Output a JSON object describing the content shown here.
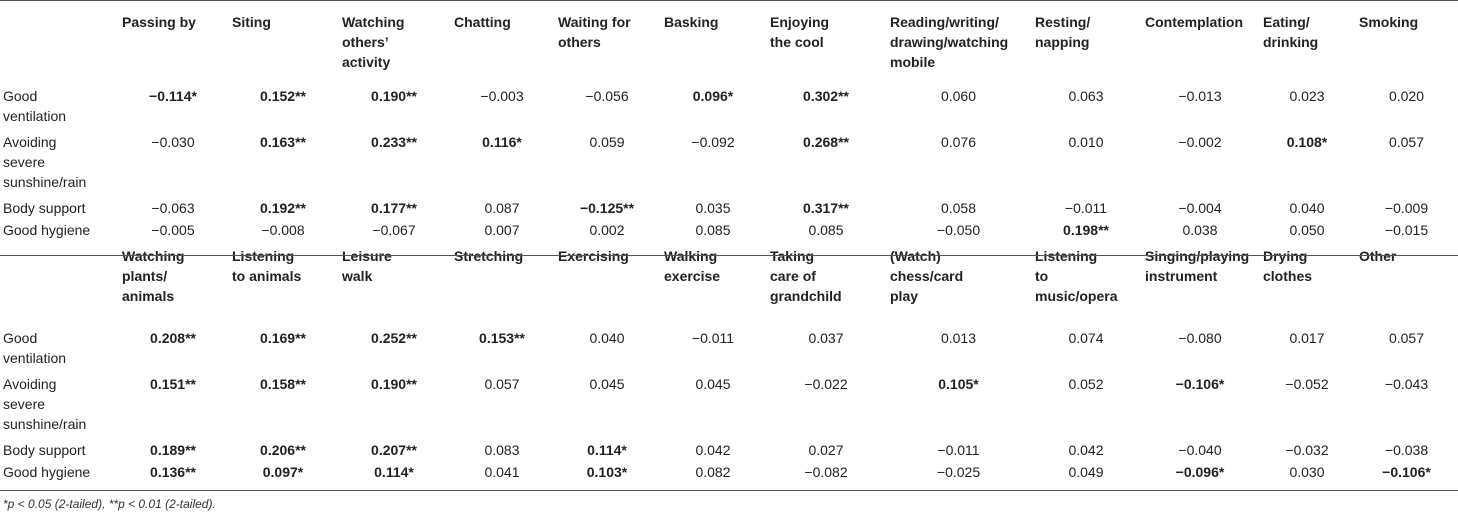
{
  "table": {
    "block1": {
      "headers": [
        "Passing by",
        "Siting",
        "Watching others’ activity",
        "Chatting",
        "Waiting for others",
        "Basking",
        "Enjoying the cool",
        "Reading/writing/ drawing/watching mobile",
        "Resting/ napping",
        "Contemplation",
        "Eating/ drinking",
        "Smoking"
      ],
      "header_lines": [
        [
          "Passing by"
        ],
        [
          "Siting"
        ],
        [
          "Watching",
          "others’",
          "activity"
        ],
        [
          "Chatting"
        ],
        [
          "Waiting for",
          "others"
        ],
        [
          "Basking"
        ],
        [
          "Enjoying",
          "the cool"
        ],
        [
          "Reading/writing/",
          "drawing/watching",
          "mobile"
        ],
        [
          "Resting/",
          "napping"
        ],
        [
          "Contemplation"
        ],
        [
          "Eating/",
          "drinking"
        ],
        [
          "Smoking"
        ]
      ],
      "rows": [
        {
          "label": "Good ventilation",
          "label_lines": [
            "Good",
            "ventilation"
          ],
          "cells": [
            {
              "v": "−0.114*",
              "bold": true
            },
            {
              "v": "0.152**",
              "bold": true
            },
            {
              "v": "0.190**",
              "bold": true
            },
            {
              "v": "−0.003",
              "bold": false
            },
            {
              "v": "−0.056",
              "bold": false
            },
            {
              "v": "0.096*",
              "bold": true
            },
            {
              "v": "0.302**",
              "bold": true
            },
            {
              "v": "0.060",
              "bold": false
            },
            {
              "v": "0.063",
              "bold": false
            },
            {
              "v": "−0.013",
              "bold": false
            },
            {
              "v": "0.023",
              "bold": false
            },
            {
              "v": "0.020",
              "bold": false
            }
          ]
        },
        {
          "label": "Avoiding severe sunshine/rain",
          "label_lines": [
            "Avoiding",
            "severe",
            "sunshine/rain"
          ],
          "cells": [
            {
              "v": "−0.030",
              "bold": false
            },
            {
              "v": "0.163**",
              "bold": true
            },
            {
              "v": "0.233**",
              "bold": true
            },
            {
              "v": "0.116*",
              "bold": true
            },
            {
              "v": "0.059",
              "bold": false
            },
            {
              "v": "−0.092",
              "bold": false
            },
            {
              "v": "0.268**",
              "bold": true
            },
            {
              "v": "0.076",
              "bold": false
            },
            {
              "v": "0.010",
              "bold": false
            },
            {
              "v": "−0.002",
              "bold": false
            },
            {
              "v": "0.108*",
              "bold": true
            },
            {
              "v": "0.057",
              "bold": false
            }
          ]
        },
        {
          "label": "Body support",
          "label_lines": [
            "Body support"
          ],
          "cells": [
            {
              "v": "−0.063",
              "bold": false
            },
            {
              "v": "0.192**",
              "bold": true
            },
            {
              "v": "0.177**",
              "bold": true
            },
            {
              "v": "0.087",
              "bold": false
            },
            {
              "v": "−0.125**",
              "bold": true
            },
            {
              "v": "0.035",
              "bold": false
            },
            {
              "v": "0.317**",
              "bold": true
            },
            {
              "v": "0.058",
              "bold": false
            },
            {
              "v": "−0.011",
              "bold": false
            },
            {
              "v": "−0.004",
              "bold": false
            },
            {
              "v": "0.040",
              "bold": false
            },
            {
              "v": "−0.009",
              "bold": false
            }
          ]
        },
        {
          "label": "Good hygiene",
          "label_lines": [
            "Good hygiene"
          ],
          "cells": [
            {
              "v": "−0.005",
              "bold": false
            },
            {
              "v": "−0.008",
              "bold": false
            },
            {
              "v": "−0.067",
              "bold": false
            },
            {
              "v": "0.007",
              "bold": false
            },
            {
              "v": "0.002",
              "bold": false
            },
            {
              "v": "0.085",
              "bold": false
            },
            {
              "v": "0.085",
              "bold": false
            },
            {
              "v": "−0.050",
              "bold": false
            },
            {
              "v": "0.198**",
              "bold": true
            },
            {
              "v": "0.038",
              "bold": false
            },
            {
              "v": "0.050",
              "bold": false
            },
            {
              "v": "−0.015",
              "bold": false
            }
          ]
        }
      ]
    },
    "block2": {
      "headers": [
        "Watching plants/ animals",
        "Listening to animals",
        "Leisure walk",
        "Stretching",
        "Exercising",
        "Walking exercise",
        "Taking care of grandchild",
        "(Watch) chess/card play",
        "Listening to music/opera",
        "Singing/playing instrument",
        "Drying clothes",
        "Other"
      ],
      "header_lines": [
        [
          "Watching",
          "plants/",
          "animals"
        ],
        [
          "Listening",
          "to animals"
        ],
        [
          "Leisure",
          "walk"
        ],
        [
          "Stretching"
        ],
        [
          "Exercising"
        ],
        [
          "Walking",
          "exercise"
        ],
        [
          "Taking",
          "care of",
          "grandchild"
        ],
        [
          "(Watch)",
          "chess/card",
          "play"
        ],
        [
          "Listening",
          "to",
          "music/opera"
        ],
        [
          "Singing/playing",
          "instrument"
        ],
        [
          "Drying",
          "clothes"
        ],
        [
          "Other"
        ]
      ],
      "rows": [
        {
          "label": "Good ventilation",
          "label_lines": [
            "Good",
            "ventilation"
          ],
          "cells": [
            {
              "v": "0.208**",
              "bold": true
            },
            {
              "v": "0.169**",
              "bold": true
            },
            {
              "v": "0.252**",
              "bold": true
            },
            {
              "v": "0.153**",
              "bold": true
            },
            {
              "v": "0.040",
              "bold": false
            },
            {
              "v": "−0.011",
              "bold": false
            },
            {
              "v": "0.037",
              "bold": false
            },
            {
              "v": "0.013",
              "bold": false
            },
            {
              "v": "0.074",
              "bold": false
            },
            {
              "v": "−0.080",
              "bold": false
            },
            {
              "v": "0.017",
              "bold": false
            },
            {
              "v": "0.057",
              "bold": false
            }
          ]
        },
        {
          "label": "Avoiding severe sunshine/rain",
          "label_lines": [
            "Avoiding",
            "severe",
            "sunshine/rain"
          ],
          "cells": [
            {
              "v": "0.151**",
              "bold": true
            },
            {
              "v": "0.158**",
              "bold": true
            },
            {
              "v": "0.190**",
              "bold": true
            },
            {
              "v": "0.057",
              "bold": false
            },
            {
              "v": "0.045",
              "bold": false
            },
            {
              "v": "0.045",
              "bold": false
            },
            {
              "v": "−0.022",
              "bold": false
            },
            {
              "v": "0.105*",
              "bold": true
            },
            {
              "v": "0.052",
              "bold": false
            },
            {
              "v": "−0.106*",
              "bold": true
            },
            {
              "v": "−0.052",
              "bold": false
            },
            {
              "v": "−0.043",
              "bold": false
            }
          ]
        },
        {
          "label": "Body support",
          "label_lines": [
            "Body support"
          ],
          "cells": [
            {
              "v": "0.189**",
              "bold": true
            },
            {
              "v": "0.206**",
              "bold": true
            },
            {
              "v": "0.207**",
              "bold": true
            },
            {
              "v": "0.083",
              "bold": false
            },
            {
              "v": "0.114*",
              "bold": true
            },
            {
              "v": "0.042",
              "bold": false
            },
            {
              "v": "0.027",
              "bold": false
            },
            {
              "v": "−0.011",
              "bold": false
            },
            {
              "v": "0.042",
              "bold": false
            },
            {
              "v": "−0.040",
              "bold": false
            },
            {
              "v": "−0.032",
              "bold": false
            },
            {
              "v": "−0.038",
              "bold": false
            }
          ]
        },
        {
          "label": "Good hygiene",
          "label_lines": [
            "Good hygiene"
          ],
          "cells": [
            {
              "v": "0.136**",
              "bold": true
            },
            {
              "v": "0.097*",
              "bold": true
            },
            {
              "v": "0.114*",
              "bold": true
            },
            {
              "v": "0.041",
              "bold": false
            },
            {
              "v": "0.103*",
              "bold": true
            },
            {
              "v": "0.082",
              "bold": false
            },
            {
              "v": "−0.082",
              "bold": false
            },
            {
              "v": "−0.025",
              "bold": false
            },
            {
              "v": "0.049",
              "bold": false
            },
            {
              "v": "−0.096*",
              "bold": true
            },
            {
              "v": "0.030",
              "bold": false
            },
            {
              "v": "−0.106*",
              "bold": true
            }
          ]
        }
      ]
    },
    "footnote": "*p < 0.05 (2-tailed), **p < 0.01 (2-tailed)."
  }
}
